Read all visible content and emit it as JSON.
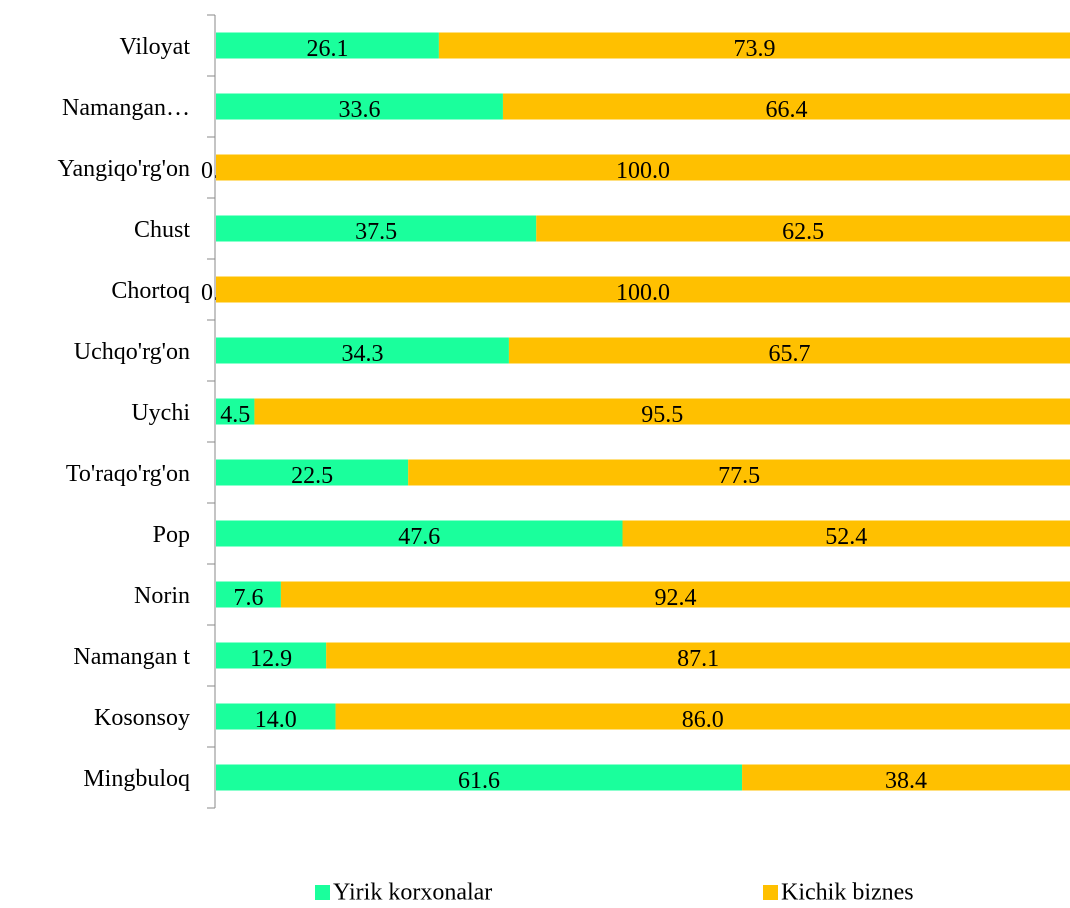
{
  "chart_data": {
    "type": "stacked_barh",
    "categories": [
      "Viloyat",
      "Namangan…",
      "Yangiqo'rg'on",
      "Chust",
      "Chortoq",
      "Uchqo'rg'on",
      "Uychi",
      "To'raqo'rg'on",
      "Pop",
      "Norin",
      "Namangan t",
      "Kosonsoy",
      "Mingbuloq"
    ],
    "series": [
      {
        "name": "Yirik korxonalar",
        "color": "#1aff9c",
        "values": [
          26.1,
          33.6,
          0,
          37.5,
          0,
          34.3,
          4.5,
          22.5,
          47.6,
          7.6,
          12.9,
          14,
          61.6
        ],
        "value_labels": [
          "26.1",
          "33.6",
          "0.0",
          "37.5",
          "0.0",
          "34.3",
          "4.5",
          "22.5",
          "47.6",
          "7.6",
          "12.9",
          "14.0",
          "61.6"
        ]
      },
      {
        "name": "Kichik biznes",
        "color": "#ffc000",
        "values": [
          73.9,
          66.4,
          100,
          62.5,
          100,
          65.7,
          95.5,
          77.5,
          52.4,
          92.4,
          87.1,
          86,
          38.4
        ],
        "value_labels": [
          "73.9",
          "66.4",
          "100.0",
          "62.5",
          "100.0",
          "65.7",
          "95.5",
          "77.5",
          "52.4",
          "92.4",
          "87.1",
          "86.0",
          "38.4"
        ]
      }
    ],
    "xlim": [
      0,
      100
    ],
    "legend": "bottom"
  }
}
